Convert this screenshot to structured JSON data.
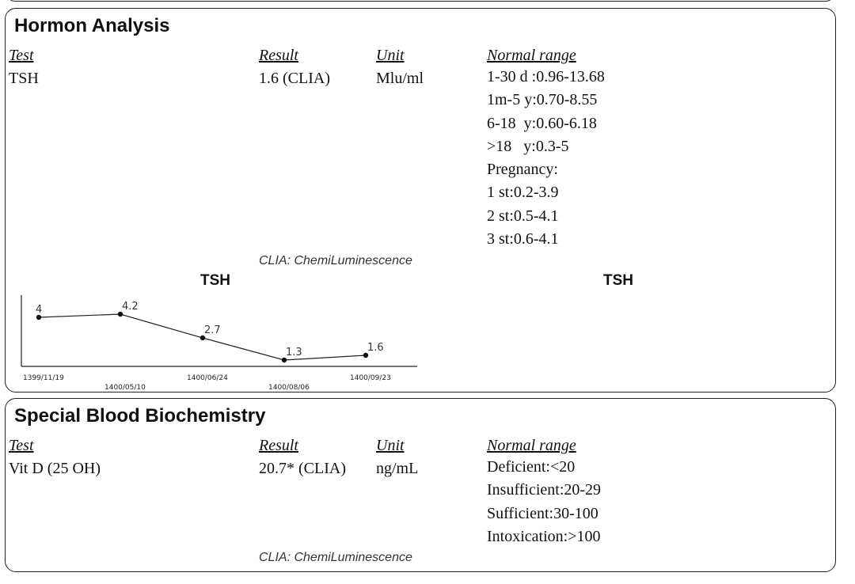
{
  "hormone_section": {
    "title": "Hormon Analysis",
    "headers": {
      "test": "Test",
      "result": "Result",
      "unit": "Unit",
      "normal_range": "Normal range"
    },
    "row": {
      "test": "TSH",
      "result": "1.6 (CLIA)",
      "unit": "Mlu/ml",
      "normal_range": [
        "1-30 d :0.96-13.68",
        "1m-5 y:0.70-8.55",
        "6-18  y:0.60-6.18",
        ">18   y:0.3-5",
        "Pregnancy:",
        "1 st:0.2-3.9",
        "2 st:0.5-4.1",
        "3 st:0.6-4.1"
      ]
    },
    "method_note": "CLIA: ChemiLuminescence",
    "chart_title_left": "TSH",
    "chart_title_right": "TSH"
  },
  "chart_data": {
    "type": "line",
    "title": "TSH",
    "categories": [
      "1399/11/19",
      "1400/05/10",
      "1400/06/24",
      "1400/08/06",
      "1400/09/23"
    ],
    "values": [
      4,
      4.2,
      2.7,
      1.3,
      1.6
    ],
    "value_labels": [
      "4",
      "4.2",
      "2.7",
      "1.3",
      "1.6"
    ],
    "ylim": [
      1,
      5
    ],
    "xlabel": "",
    "ylabel": ""
  },
  "biochem_section": {
    "title": "Special Blood Biochemistry",
    "headers": {
      "test": "Test",
      "result": "Result",
      "unit": "Unit",
      "normal_range": "Normal range"
    },
    "row": {
      "test": "Vit D (25 OH)",
      "result": "20.7* (CLIA)",
      "unit": "ng/mL",
      "normal_range": [
        "Deficient:<20",
        "Insufficient:20-29",
        "Sufficient:30-100",
        "Intoxication:>100"
      ]
    },
    "method_note": "CLIA: ChemiLuminescence"
  }
}
